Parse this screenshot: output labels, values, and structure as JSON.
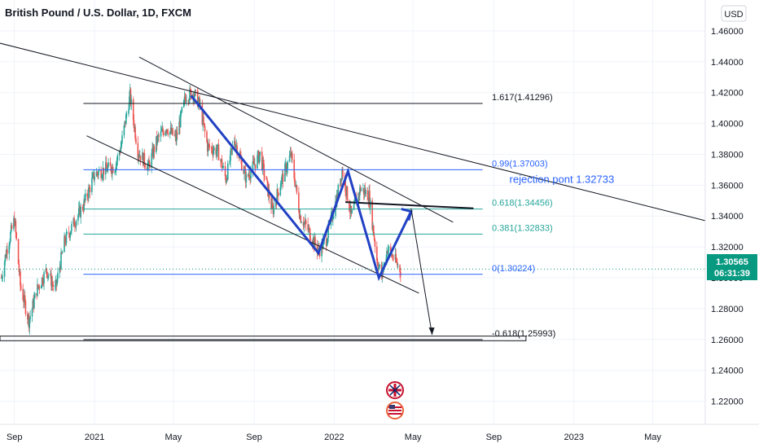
{
  "chart_data": {
    "type": "candlestick",
    "title": "British Pound / U.S. Dollar, 1D, FXCM",
    "currency": "USD",
    "colors": {
      "up": "#26a69a",
      "down": "#ef5350",
      "trendline": "#131722",
      "pattern": "#2141c4",
      "fib_blue": "#2962ff",
      "fib_green": "#26a69a",
      "price_badge": "#089981",
      "grid": "#f0f3fa",
      "axis_text": "#131722",
      "annotation": "#2962ff"
    },
    "y_axis": {
      "range": [
        1.205,
        1.48
      ],
      "ticks": [
        1.22,
        1.24,
        1.26,
        1.28,
        1.3,
        1.32,
        1.34,
        1.36,
        1.38,
        1.4,
        1.42,
        1.44,
        1.46
      ],
      "tick_labels": [
        "1.22000",
        "1.24000",
        "1.26000",
        "1.28000",
        "1.30000",
        "1.32000",
        "1.34000",
        "1.36000",
        "1.38000",
        "1.40000",
        "1.42000",
        "1.44000",
        "1.46000"
      ]
    },
    "x_axis": {
      "range": [
        "2020-08-10",
        "2023-07-20"
      ],
      "ticks": [
        {
          "date": "2020-09-01",
          "label": "Sep"
        },
        {
          "date": "2021-01-01",
          "label": "2021"
        },
        {
          "date": "2021-05-01",
          "label": "May"
        },
        {
          "date": "2021-09-01",
          "label": "Sep"
        },
        {
          "date": "2022-01-01",
          "label": "2022"
        },
        {
          "date": "2022-05-01",
          "label": "May"
        },
        {
          "date": "2022-09-01",
          "label": "Sep"
        },
        {
          "date": "2023-01-01",
          "label": "2023"
        },
        {
          "date": "2023-05-01",
          "label": "May"
        }
      ]
    },
    "price_waypoints": [
      [
        "2020-08-12",
        1.3
      ],
      [
        "2020-08-20",
        1.318
      ],
      [
        "2020-09-01",
        1.338
      ],
      [
        "2020-09-10",
        1.295
      ],
      [
        "2020-09-23",
        1.272
      ],
      [
        "2020-10-05",
        1.292
      ],
      [
        "2020-10-20",
        1.305
      ],
      [
        "2020-11-02",
        1.292
      ],
      [
        "2020-11-16",
        1.323
      ],
      [
        "2020-12-01",
        1.336
      ],
      [
        "2020-12-15",
        1.347
      ],
      [
        "2021-01-01",
        1.367
      ],
      [
        "2021-01-15",
        1.37
      ],
      [
        "2021-02-01",
        1.372
      ],
      [
        "2021-02-10",
        1.385
      ],
      [
        "2021-02-24",
        1.418
      ],
      [
        "2021-03-08",
        1.382
      ],
      [
        "2021-03-24",
        1.372
      ],
      [
        "2021-04-06",
        1.389
      ],
      [
        "2021-04-20",
        1.398
      ],
      [
        "2021-05-05",
        1.39
      ],
      [
        "2021-05-20",
        1.418
      ],
      [
        "2021-06-01",
        1.42
      ],
      [
        "2021-06-10",
        1.412
      ],
      [
        "2021-06-22",
        1.385
      ],
      [
        "2021-07-08",
        1.382
      ],
      [
        "2021-07-20",
        1.364
      ],
      [
        "2021-08-02",
        1.39
      ],
      [
        "2021-08-20",
        1.364
      ],
      [
        "2021-09-10",
        1.38
      ],
      [
        "2021-09-29",
        1.343
      ],
      [
        "2021-10-10",
        1.36
      ],
      [
        "2021-10-27",
        1.38
      ],
      [
        "2021-11-10",
        1.34
      ],
      [
        "2021-11-25",
        1.329
      ],
      [
        "2021-12-08",
        1.317
      ],
      [
        "2021-12-20",
        1.325
      ],
      [
        "2022-01-05",
        1.352
      ],
      [
        "2022-01-13",
        1.37
      ],
      [
        "2022-01-27",
        1.34
      ],
      [
        "2022-02-10",
        1.358
      ],
      [
        "2022-02-23",
        1.353
      ],
      [
        "2022-03-07",
        1.312
      ],
      [
        "2022-03-14",
        1.301
      ],
      [
        "2022-03-23",
        1.319
      ],
      [
        "2022-04-01",
        1.313
      ],
      [
        "2022-04-12",
        1.305
      ]
    ],
    "current_price": {
      "value": "1.30565",
      "countdown": "06:31:39"
    },
    "fib_levels": [
      {
        "label": "1.617(1.41296)",
        "value": 1.41296,
        "x_start": "2020-12-15",
        "x_end": "2022-08-15",
        "color": "#131722"
      },
      {
        "label": "0.99(1.37003)",
        "value": 1.37003,
        "x_start": "2020-12-15",
        "x_end": "2022-08-15",
        "color": "#2962ff"
      },
      {
        "label": "0.618(1.34456)",
        "value": 1.34456,
        "x_start": "2020-12-15",
        "x_end": "2022-08-15",
        "color": "#26a69a"
      },
      {
        "label": "0.381(1.32833)",
        "value": 1.32833,
        "x_start": "2020-12-15",
        "x_end": "2022-08-15",
        "color": "#26a69a"
      },
      {
        "label": "0(1.30224)",
        "value": 1.30224,
        "x_start": "2020-12-15",
        "x_end": "2022-08-15",
        "color": "#2962ff"
      },
      {
        "label": "-0.618(1.25993)",
        "value": 1.25993,
        "x_start": "2020-12-15",
        "x_end": "2022-08-15",
        "color": "#131722"
      }
    ],
    "trendlines": [
      {
        "x1": "2020-08-10",
        "y1": 1.452,
        "x2": "2023-07-20",
        "y2": 1.337
      },
      {
        "x1": "2021-03-10",
        "y1": 1.443,
        "x2": "2022-07-01",
        "y2": 1.336
      },
      {
        "x1": "2020-12-20",
        "y1": 1.392,
        "x2": "2022-05-10",
        "y2": 1.29
      },
      {
        "x1": "2022-01-18",
        "y1": 1.349,
        "x2": "2022-08-01",
        "y2": 1.345
      }
    ],
    "pattern_path": [
      [
        "2021-05-28",
        1.418
      ],
      [
        "2021-12-08",
        1.316
      ],
      [
        "2022-01-22",
        1.369
      ],
      [
        "2022-03-10",
        1.3
      ],
      [
        "2022-04-28",
        1.343
      ]
    ],
    "projection_arrow": [
      [
        "2022-04-28",
        1.345
      ],
      [
        "2022-05-30",
        1.263
      ]
    ],
    "support_zone": {
      "x_start": "2020-08-10",
      "x_end": "2022-10-20",
      "y_low": 1.2592,
      "y_high": 1.2622
    },
    "annotation": {
      "text": "rejection pont 1.32733",
      "x": "2022-11-01",
      "y": 1.3615
    },
    "watermark_icons": [
      "gbp-flag-icon",
      "usd-flag-icon"
    ]
  }
}
